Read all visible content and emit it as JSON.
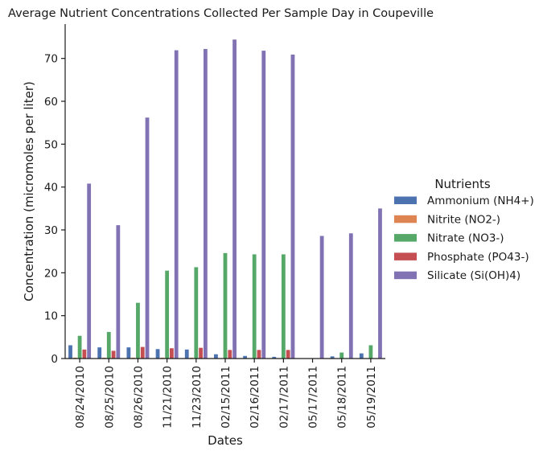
{
  "chart_data": {
    "type": "bar",
    "title": "Average Nutrient Concentrations Collected Per Sample Day in Coupeville",
    "xlabel": "Dates",
    "ylabel": "Concentration (micromoles per liter)",
    "ylim": [
      0,
      78
    ],
    "yticks": [
      0,
      10,
      20,
      30,
      40,
      50,
      60,
      70
    ],
    "grid": false,
    "legend_title": "Nutrients",
    "legend_position": "right",
    "categories": [
      "08/24/2010",
      "08/25/2010",
      "08/26/2010",
      "11/21/2010",
      "11/23/2010",
      "02/15/2011",
      "02/16/2011",
      "02/17/2011",
      "05/17/2011",
      "05/18/2011",
      "05/19/2011"
    ],
    "series": [
      {
        "name": "Ammonium (NH4+)",
        "color": "#4c72b0",
        "values": [
          3.1,
          2.6,
          2.6,
          2.2,
          2.1,
          1.0,
          0.6,
          0.4,
          0.0,
          0.5,
          1.2
        ]
      },
      {
        "name": "Nitrite (NO2-)",
        "color": "#dd8452",
        "values": [
          0.2,
          0.2,
          0.2,
          0.2,
          0.2,
          0.1,
          0.1,
          0.1,
          0.0,
          0.0,
          0.1
        ]
      },
      {
        "name": "Nitrate (NO3-)",
        "color": "#55a868",
        "values": [
          5.3,
          6.2,
          13.0,
          20.5,
          21.3,
          24.6,
          24.3,
          24.3,
          0.0,
          1.4,
          3.1
        ]
      },
      {
        "name": "Phosphate (PO43-)",
        "color": "#c44e52",
        "values": [
          2.1,
          1.8,
          2.7,
          2.4,
          2.5,
          2.0,
          2.0,
          2.0,
          0.0,
          0.1,
          0.1
        ]
      },
      {
        "name": "Silicate (Si(OH)4)",
        "color": "#8172b3",
        "values": [
          40.8,
          31.1,
          56.2,
          71.9,
          72.2,
          74.4,
          71.8,
          70.9,
          28.6,
          29.2,
          35.0
        ]
      }
    ]
  }
}
